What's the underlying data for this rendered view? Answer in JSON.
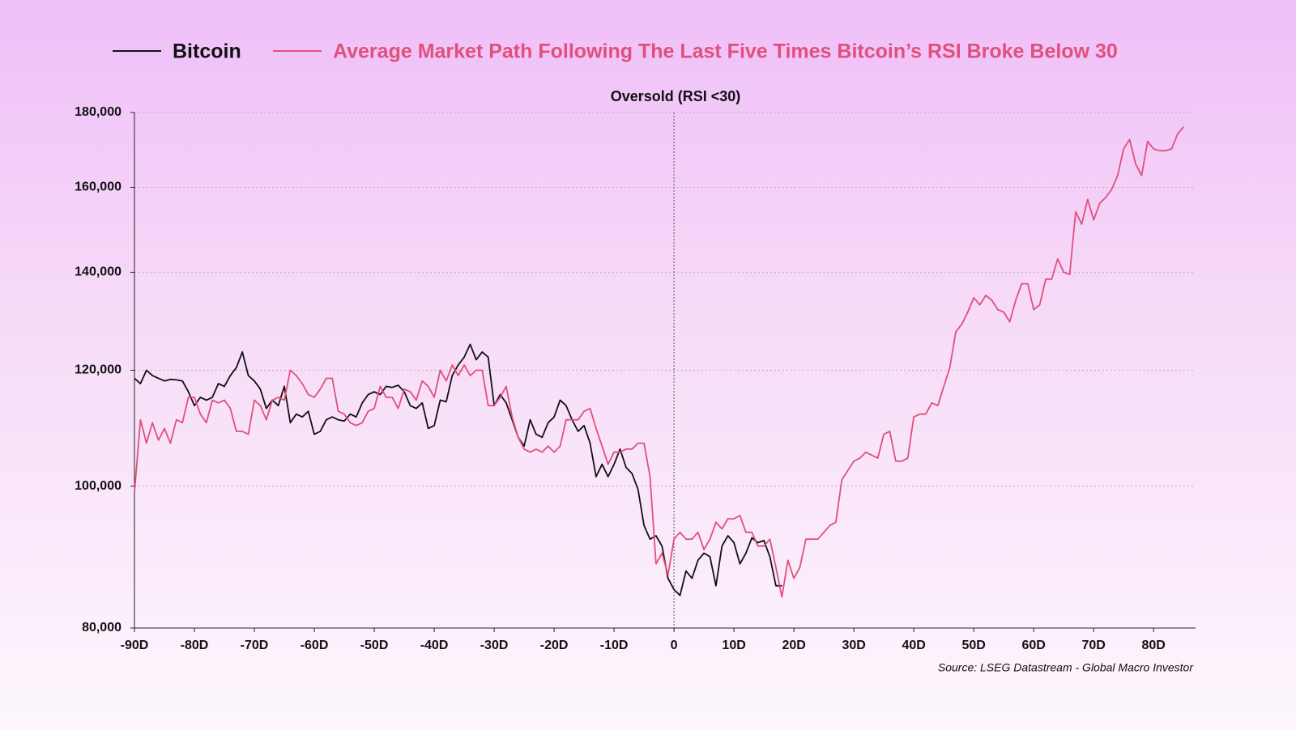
{
  "chart_data": {
    "type": "line",
    "annotation": {
      "text": "Oversold (RSI <30)",
      "x": 0
    },
    "source": "Source: LSEG Datastream - Global Macro Investor",
    "log_scale": true,
    "grid": true,
    "legend": "top",
    "xlim": [
      -90,
      87
    ],
    "ylim": [
      80000,
      180000
    ],
    "xticks": [
      {
        "value": -90,
        "label": "-90D"
      },
      {
        "value": -80,
        "label": "-80D"
      },
      {
        "value": -70,
        "label": "-70D"
      },
      {
        "value": -60,
        "label": "-60D"
      },
      {
        "value": -50,
        "label": "-50D"
      },
      {
        "value": -40,
        "label": "-40D"
      },
      {
        "value": -30,
        "label": "-30D"
      },
      {
        "value": -20,
        "label": "-20D"
      },
      {
        "value": -10,
        "label": "-10D"
      },
      0,
      {
        "value": 10,
        "label": "10D"
      },
      {
        "value": 20,
        "label": "20D"
      },
      {
        "value": 30,
        "label": "30D"
      },
      {
        "value": 40,
        "label": "40D"
      },
      {
        "value": 50,
        "label": "50D"
      },
      {
        "value": 60,
        "label": "60D"
      },
      {
        "value": 70,
        "label": "70D"
      },
      {
        "value": 80,
        "label": "80D"
      }
    ],
    "yticks": [
      {
        "value": 80000,
        "label": "80,000"
      },
      {
        "value": 100000,
        "label": "100,000"
      },
      {
        "value": 120000,
        "label": "120,000"
      },
      {
        "value": 140000,
        "label": "140,000"
      },
      {
        "value": 160000,
        "label": "160,000"
      },
      {
        "value": 180000,
        "label": "180,000"
      }
    ],
    "x": [
      -90,
      -89,
      -88,
      -87,
      -86,
      -85,
      -84,
      -83,
      -82,
      -81,
      -80,
      -79,
      -78,
      -77,
      -76,
      -75,
      -74,
      -73,
      -72,
      -71,
      -70,
      -69,
      -68,
      -67,
      -66,
      -65,
      -64,
      -63,
      -62,
      -61,
      -60,
      -59,
      -58,
      -57,
      -56,
      -55,
      -54,
      -53,
      -52,
      -51,
      -50,
      -49,
      -48,
      -47,
      -46,
      -45,
      -44,
      -43,
      -42,
      -41,
      -40,
      -39,
      -38,
      -37,
      -36,
      -35,
      -34,
      -33,
      -32,
      -31,
      -30,
      -29,
      -28,
      -27,
      -26,
      -25,
      -24,
      -23,
      -22,
      -21,
      -20,
      -19,
      -18,
      -17,
      -16,
      -15,
      -14,
      -13,
      -12,
      -11,
      -10,
      -9,
      -8,
      -7,
      -6,
      -5,
      -4,
      -3,
      -2,
      -1,
      0,
      1,
      2,
      3,
      4,
      5,
      6,
      7,
      8,
      9,
      10,
      11,
      12,
      13,
      14,
      15,
      16,
      17,
      18,
      19,
      20,
      21,
      22,
      23,
      24,
      25,
      26,
      27,
      28,
      29,
      30,
      31,
      32,
      33,
      34,
      35,
      36,
      37,
      38,
      39,
      40,
      41,
      42,
      43,
      44,
      45,
      46,
      47,
      48,
      49,
      50,
      51,
      52,
      53,
      54,
      55,
      56,
      57,
      58,
      59,
      60,
      61,
      62,
      63,
      64,
      65,
      66,
      67,
      68,
      69,
      70,
      71,
      72,
      73,
      74,
      75,
      76,
      77,
      78,
      79,
      80,
      81,
      82,
      83,
      84,
      85
    ],
    "series": [
      {
        "name": "Bitcoin",
        "color": "#111111",
        "values": [
          118500,
          117500,
          120000,
          119000,
          118500,
          118000,
          118300,
          118200,
          118000,
          116000,
          113500,
          115000,
          114500,
          115000,
          117500,
          117000,
          119000,
          120500,
          123500,
          119000,
          118000,
          116500,
          113000,
          114500,
          113500,
          117000,
          110500,
          112000,
          111500,
          112500,
          108500,
          109000,
          111000,
          111500,
          111000,
          110800,
          112000,
          111500,
          114000,
          115500,
          116000,
          115500,
          117000,
          116800,
          117200,
          116000,
          113500,
          113000,
          114000,
          109500,
          110000,
          114500,
          114200,
          119000,
          121000,
          122500,
          125000,
          122000,
          123500,
          122500,
          113500,
          115500,
          114000,
          111000,
          108000,
          106500,
          111000,
          108500,
          108000,
          110500,
          111500,
          114500,
          113500,
          111000,
          109000,
          110000,
          107000,
          101500,
          103500,
          101500,
          103500,
          106000,
          103000,
          102000,
          99500,
          94000,
          92000,
          92500,
          91000,
          86500,
          85000,
          84200,
          87500,
          86500,
          89000,
          90000,
          89500,
          85500,
          91000,
          92500,
          91500,
          88500,
          90000,
          92200,
          91500,
          91800,
          89500,
          85500,
          85500,
          null,
          null,
          null,
          null,
          null,
          null,
          null,
          null,
          null,
          null,
          null,
          null,
          null,
          null,
          null,
          null,
          null,
          null,
          null,
          null,
          null,
          null,
          null,
          null,
          null,
          null,
          null,
          null,
          null,
          null,
          null,
          null,
          null,
          null,
          null,
          null,
          null,
          null,
          null,
          null,
          null,
          null,
          null,
          null,
          null,
          null,
          null,
          null,
          null,
          null,
          null,
          null,
          null,
          null,
          null,
          null,
          null,
          null,
          null,
          null,
          null,
          null,
          null,
          null,
          null,
          null,
          null
        ]
      },
      {
        "name": "Average Market Path Following The Last Five Times Bitcoin’s RSI Broke Below 30",
        "color": "#e0507a",
        "values": [
          99000,
          111000,
          107000,
          110500,
          107500,
          109500,
          107000,
          111000,
          110500,
          115000,
          115000,
          112000,
          110500,
          114500,
          114000,
          114500,
          113000,
          109000,
          109000,
          108500,
          114500,
          113500,
          111000,
          114500,
          115000,
          114500,
          120000,
          119000,
          117500,
          115500,
          115000,
          116500,
          118500,
          118500,
          112500,
          112000,
          110500,
          110000,
          110500,
          112500,
          113000,
          117000,
          115000,
          115000,
          113000,
          116500,
          116000,
          114500,
          118000,
          117000,
          115000,
          120000,
          118000,
          121000,
          119000,
          121000,
          119000,
          120000,
          120000,
          113500,
          113500,
          115000,
          117000,
          111500,
          108000,
          106000,
          105500,
          106000,
          105500,
          106500,
          105500,
          106500,
          111000,
          111000,
          111000,
          112500,
          113000,
          109500,
          106500,
          103500,
          105500,
          105500,
          106000,
          106000,
          107000,
          107000,
          101500,
          88500,
          90000,
          87000,
          92000,
          93000,
          92000,
          92000,
          93000,
          90500,
          92000,
          94500,
          93500,
          95000,
          95000,
          95500,
          93000,
          93000,
          91000,
          91000,
          92000,
          88000,
          84000,
          89000,
          86500,
          88000,
          92000,
          92000,
          92000,
          93000,
          94000,
          94500,
          101000,
          102500,
          104000,
          104500,
          105500,
          105000,
          104500,
          108500,
          109000,
          104000,
          104000,
          104500,
          111500,
          112000,
          112000,
          114000,
          113500,
          117000,
          120500,
          127500,
          129000,
          131500,
          134500,
          133000,
          135000,
          134000,
          132000,
          131500,
          129500,
          134000,
          137500,
          137500,
          132000,
          133000,
          138500,
          138500,
          143000,
          140000,
          139500,
          154000,
          151000,
          157000,
          152000,
          156000,
          157500,
          159500,
          163000,
          170000,
          172500,
          166000,
          163000,
          172000,
          170000,
          169500,
          169500,
          170000,
          174000,
          176000
        ]
      }
    ]
  }
}
